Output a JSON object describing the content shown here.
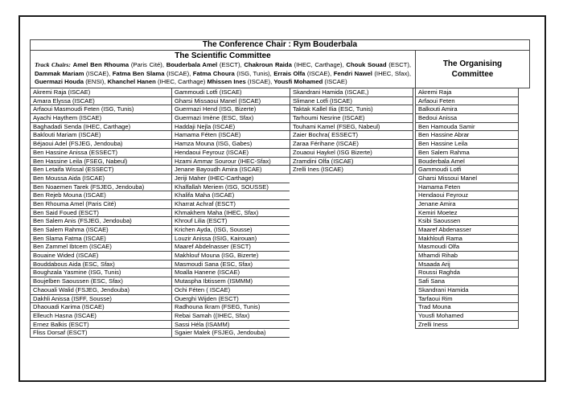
{
  "conference_chair": "The Conference Chair : Rym Bouderbala",
  "scientific_committee": {
    "title": "The Scientific Committee",
    "track_chairs_label": "Track Chairs:",
    "track_chairs": [
      {
        "n": "Amel Ben Rhouma",
        "a": " (Paris Cité), "
      },
      {
        "n": "Bouderbala Amel",
        "a": " (ESCT), "
      },
      {
        "n": "Chakroun Raida",
        "a": " (IHEC, Carthage), "
      },
      {
        "n": "Chouk Souad",
        "a": " (ESCT), "
      },
      {
        "n": "Dammak Mariam",
        "a": " (ISCAE), "
      },
      {
        "n": "Fatma Ben Slama",
        "a": " (ISCAE), "
      },
      {
        "n": "Fatma Choura",
        "a": " (ISG, Tunis), "
      },
      {
        "n": "Errais Olfa",
        "a": " (ISCAE), "
      },
      {
        "n": "Fendri Nawel",
        "a": " (IHEC, Sfax), "
      },
      {
        "n": "Guermazi Houda",
        "a": " (ENSI), "
      },
      {
        "n": "Khanchel Hanen",
        "a": " (IHEC, Carthage) "
      },
      {
        "n": "Mhissen Ines",
        "a": " (ISCAE), "
      },
      {
        "n": "Yousfi Mohamed",
        "a": " (ISCAE)"
      }
    ],
    "members_col1": [
      "Akremi Raja (ISCAE)",
      "Amara Elyssa (ISCAE)",
      "Arfaoui Masmoudi Feten (ISG, Tunis)",
      "Ayachi Haythem (ISCAE)",
      "Baghadadi Senda (IHEC, Carthage)",
      "Baklouti Mariam (ISCAE)",
      "Béjaoui Adel (FSJEG, Jendouba)",
      "Ben Hassine Anissa (ESSECT)",
      "Ben Hassine Leila (FSEG, Nabeul)",
      "Ben Letaifa Wissal (ESSECT)",
      "Ben Moussa Aida (ISCAE)",
      "Ben Noaemen Tarek (FSJEG, Jendouba)",
      "Ben Rejeb Mouna (ISCAE)",
      "Ben Rhouma Amel (Paris Cité)",
      "Ben Said Foued (ESCT)",
      "Ben Salem Anis (FSJEG, Jendouba)",
      "Ben Salem Rahma (ISCAE)",
      "Ben Slama Fatma (ISCAE)",
      "Ben Zammel Ibtcem (ISCAE)",
      "Bouaine Wided (ISCAE)",
      "Bouddabous Aida (ESC, Sfax)",
      "Boughzala Yasmine (ISG, Tunis)",
      "Boujelben Saoussen (ESC, Sfax)",
      "Chaouali Walid (FSJEG, Jendouba)",
      "Dakhli Anissa (ISFF, Sousse)",
      "Dhaouadi Karima (ISCAE)",
      "Elleuch Hasna (ISCAE)",
      "Ernez Balkis (ESCT)",
      "Fliss Dorsaf (ESCT)"
    ],
    "members_col2": [
      "Gammoudi Lotfi (ISCAE)",
      "Gharsi Missaoui Manel (ISCAE)",
      "Guermazi Hend (ISG, Bizerte)",
      "Guermazi Imène (ESC, Sfax)",
      "Haddaji Nejla (ISCAE)",
      "Hamama Féten (ISCAE)",
      "Hamza Mouna (ISG, Gabes)",
      "Hendaoui Feyrouz (ISCAE)",
      "Hzami Ammar Sourour (IHEC-Sfax)",
      "Jenane Bayoudh Amira (ISCAE)",
      "Jeriji Maher (IHEC-Carthage)",
      "Khalfallah Meriem (ISG, SOUSSE)",
      "Khalifa Maha (ISCAE)",
      "Kharrat Achraf (ESCT)",
      "Khmakhem Maha (IHEC, Sfax)",
      "Khrouf Lilia (ESCT)",
      "Krichen Ayda, (ISG, Sousse)",
      "Louzir Anissa (ISIG, Kairouan)",
      "Maaref Abdelnasser (ESCT)",
      "Makhlouf Mouna (ISG, Bizerte)",
      "Masmoudi Sana (ESC, Sfax)",
      "Moalla Hanene  (ISCAE)",
      "Mutaspha Ibtissem (ISMMM)",
      "Ochi Féten ( ISCAE)",
      "Ouerghi Wijden (ESCT)",
      "Radhouna Ikram (FSEG, Tunis)",
      "Rebai Samah ((IHEC, Sfax)",
      "Sassi Héla (ISAMM)",
      "Sgaier Malek (FSJEG, Jendouba)"
    ],
    "members_col3": [
      "Skandrani Hamida (ISCAE,)",
      "Slimane Lotfi (ISCAE)",
      "Taktak Kallel Ilia (ESC, Tunis)",
      "Tarhoumi Nesrine (ISCAE)",
      "Touhami Kamel (FSEG, Nabeul)",
      "Zaier Bochra( ESSECT)",
      "Zaraa Férihane (ISCAE)",
      "Zouaoui Haykel (ISG Bizerte)",
      "Zramdini Olfa (ISCAE)",
      "Zrelli Ines (ISCAE)"
    ]
  },
  "organising_committee": {
    "title_line1": "The Organising",
    "title_line2": "Committee",
    "members": [
      "Akremi Raja",
      "Arfaoui Feten",
      "Balkouti Amira",
      "Bedoui Anissa",
      "Ben Hamouda Samir",
      "Ben Hassine Abrar",
      "Ben Hassine Leila",
      "Ben Salem Rahma",
      "Bouderbala Amel",
      "Gammoudi Lotfi",
      "Gharsi Missoui Manel",
      "Hamama Feten",
      "Hendaoui Feyrouz",
      "Jenane Amira",
      "Kemiri Moetez",
      "Ksibi Saoussen",
      "Maaref Abdenasser",
      "Makhloufi Rama",
      "Masmoudi Olfa",
      "Mhamdi Rihab",
      "Msaada Arij",
      "Roussi Raghda",
      "Safi Sana",
      "Skandrani Hamida",
      "Tarfaoui Rim",
      "Trad Mouna",
      "Yousfi Mohamed",
      "Zrelli Iness"
    ]
  }
}
